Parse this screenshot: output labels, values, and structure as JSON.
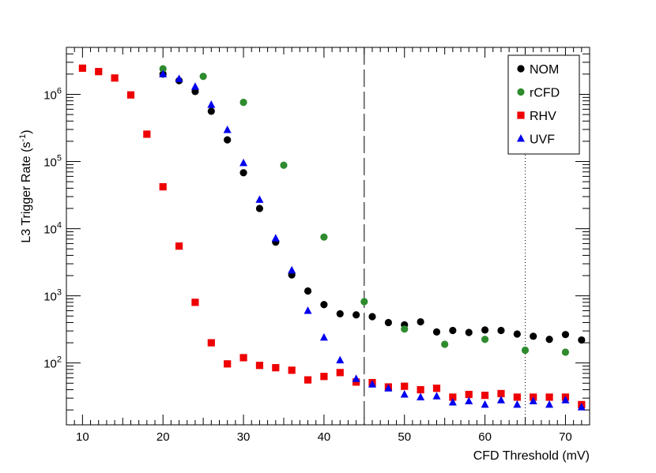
{
  "chart_data": {
    "type": "scatter",
    "title": "",
    "xlabel": "CFD Threshold (mV)",
    "ylabel": "L3 Trigger Rate (s",
    "ylabel_superscript": "-1",
    "ylabel_close": ")",
    "xlim": [
      8,
      73
    ],
    "ylim": [
      12,
      5000000
    ],
    "yscale": "log",
    "x_ticks": [
      10,
      20,
      30,
      40,
      50,
      60,
      70
    ],
    "x_tick_labels": [
      "10",
      "20",
      "30",
      "40",
      "50",
      "60",
      "70"
    ],
    "y_ticks": [
      100,
      1000,
      10000,
      100000,
      1000000
    ],
    "y_tick_base": "10",
    "y_tick_exponents": [
      "2",
      "3",
      "4",
      "5",
      "6"
    ],
    "legend_position": "top-right",
    "vertical_lines": [
      {
        "x": 45,
        "style": "long-dash"
      },
      {
        "x": 65,
        "style": "dotted"
      }
    ],
    "series": [
      {
        "name": "NOM",
        "marker": "circle",
        "color": "#000000",
        "x": [
          20,
          22,
          24,
          26,
          28,
          30,
          32,
          34,
          36,
          38,
          40,
          42,
          44,
          46,
          48,
          50,
          52,
          54,
          56,
          58,
          60,
          62,
          64,
          66,
          68,
          70,
          72
        ],
        "y": [
          2000000,
          1600000,
          1100000,
          560000,
          210000,
          68000,
          20000,
          6300,
          2050,
          1180,
          740,
          540,
          520,
          490,
          400,
          370,
          410,
          290,
          305,
          285,
          310,
          305,
          270,
          250,
          225,
          265,
          220
        ]
      },
      {
        "name": "rCFD",
        "marker": "circle",
        "color": "#2e8b2e",
        "x": [
          20,
          25,
          30,
          35,
          40,
          45,
          50,
          55,
          60,
          65,
          70
        ],
        "y": [
          2400000,
          1850000,
          760000,
          88000,
          7500,
          820,
          320,
          190,
          225,
          155,
          145
        ]
      },
      {
        "name": "RHV",
        "marker": "square",
        "color": "#ee0000",
        "x": [
          10,
          12,
          14,
          16,
          18,
          20,
          22,
          24,
          26,
          28,
          30,
          32,
          34,
          36,
          38,
          40,
          42,
          44,
          46,
          48,
          50,
          52,
          54,
          56,
          58,
          60,
          62,
          64,
          66,
          68,
          70,
          72
        ],
        "y": [
          2450000,
          2180000,
          1750000,
          980000,
          255000,
          42000,
          5500,
          800,
          200,
          97,
          120,
          92,
          85,
          78,
          56,
          63,
          72,
          52,
          51,
          44,
          45,
          40,
          42,
          31,
          34,
          33,
          35,
          31,
          31,
          31,
          31,
          24
        ]
      },
      {
        "name": "UVF",
        "marker": "triangle",
        "color": "#0000ee",
        "x": [
          20,
          22,
          24,
          26,
          28,
          30,
          32,
          34,
          36,
          38,
          40,
          42,
          44,
          46,
          48,
          50,
          52,
          54,
          56,
          58,
          60,
          62,
          64,
          66,
          68,
          70,
          72
        ],
        "y": [
          2000000,
          1700000,
          1300000,
          700000,
          295000,
          95000,
          27000,
          7200,
          2400,
          600,
          240,
          110,
          58,
          48,
          42,
          34,
          31,
          32,
          26,
          27,
          24,
          28,
          24,
          27,
          24,
          28,
          22
        ]
      }
    ]
  }
}
